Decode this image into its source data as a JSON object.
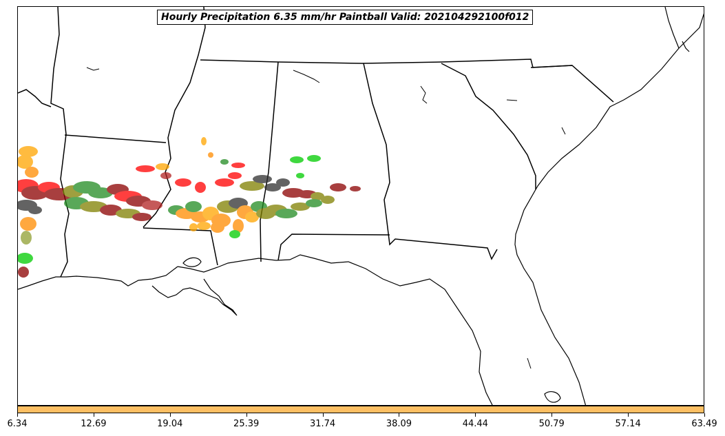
{
  "map": {
    "title": "Hourly Precipitation 6.35 mm/hr Paintball Valid: 202104292100f012",
    "colorbar": {
      "color": "#fdbf63",
      "ticks": [
        "6.34",
        "12.69",
        "19.04",
        "25.39",
        "31.74",
        "38.09",
        "44.44",
        "50.79",
        "57.14",
        "63.49"
      ]
    },
    "member_colors": [
      "#ff0000",
      "#8b0000",
      "#ff8c00",
      "#808000",
      "#228b22",
      "#00cc00",
      "#2f2f2f",
      "#8fa032",
      "#ffa500",
      "#b22222"
    ]
  }
}
